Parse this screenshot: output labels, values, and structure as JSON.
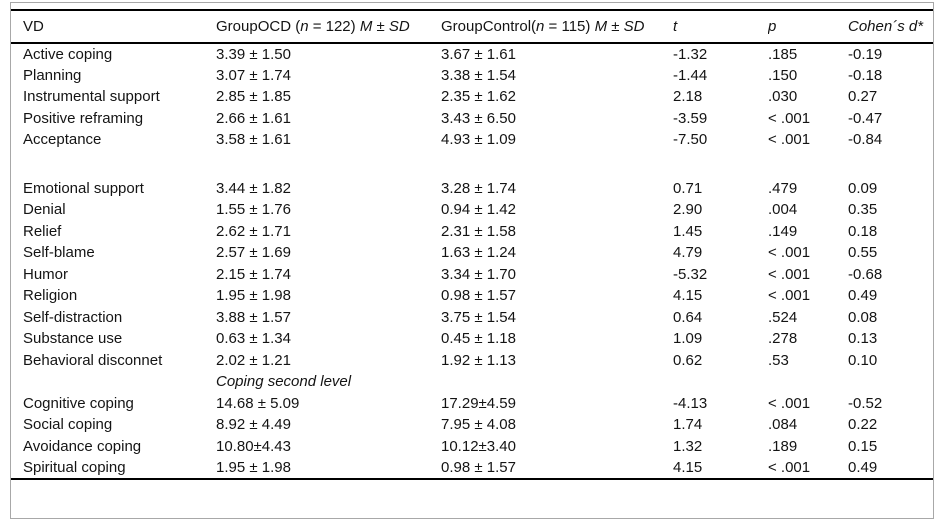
{
  "colors": {
    "background": "#ffffff",
    "rule": "#000000",
    "frame_border": "#a8a8a8",
    "text": "#141414"
  },
  "table": {
    "header": {
      "cells": [
        {
          "name": "vd",
          "parts": [
            {
              "t": "VD"
            }
          ]
        },
        {
          "name": "group-ocd",
          "parts": [
            {
              "t": "GroupOCD ("
            },
            {
              "t": "n",
              "i": true
            },
            {
              "t": " = 122) "
            },
            {
              "t": "M ± SD",
              "i": true
            }
          ]
        },
        {
          "name": "group-control",
          "parts": [
            {
              "t": "GroupControl("
            },
            {
              "t": "n",
              "i": true
            },
            {
              "t": " = 115) "
            },
            {
              "t": "M ± SD",
              "i": true
            }
          ]
        },
        {
          "name": "t-statistic",
          "parts": [
            {
              "t": "t",
              "i": true
            }
          ]
        },
        {
          "name": "p-value",
          "parts": [
            {
              "t": "p",
              "i": true
            }
          ]
        },
        {
          "name": "cohens-d",
          "parts": [
            {
              "t": "Cohen´s d*",
              "i": true
            }
          ]
        }
      ]
    },
    "rows": [
      {
        "type": "data",
        "cells": [
          "Active coping",
          "3.39 ± 1.50",
          "3.67 ± 1.61",
          "-1.32",
          ".185",
          "-0.19"
        ]
      },
      {
        "type": "data",
        "cells": [
          "Planning",
          "3.07 ± 1.74",
          "3.38 ± 1.54",
          "-1.44",
          ".150",
          "-0.18"
        ]
      },
      {
        "type": "data",
        "cells": [
          "Instrumental support",
          "2.85 ± 1.85",
          "2.35 ± 1.62",
          "2.18",
          ".030",
          "0.27"
        ]
      },
      {
        "type": "data",
        "cells": [
          "Positive reframing",
          "2.66 ± 1.61",
          "3.43 ± 6.50",
          "-3.59",
          "< .001",
          "-0.47"
        ]
      },
      {
        "type": "data",
        "cells": [
          "Acceptance",
          "3.58 ± 1.61",
          "4.93 ± 1.09",
          "-7.50",
          "< .001",
          "-0.84"
        ]
      },
      {
        "type": "spacer"
      },
      {
        "type": "data",
        "cells": [
          "Emotional support",
          "3.44 ± 1.82",
          "3.28 ± 1.74",
          "0.71",
          ".479",
          "0.09"
        ]
      },
      {
        "type": "data",
        "cells": [
          "Denial",
          "1.55 ± 1.76",
          "0.94 ± 1.42",
          "2.90",
          ".004",
          "0.35"
        ]
      },
      {
        "type": "data",
        "cells": [
          "Relief",
          "2.62 ± 1.71",
          "2.31 ± 1.58",
          "1.45",
          ".149",
          "0.18"
        ]
      },
      {
        "type": "data",
        "cells": [
          "Self-blame",
          "2.57 ± 1.69",
          "1.63 ± 1.24",
          "4.79",
          "< .001",
          "0.55"
        ]
      },
      {
        "type": "data",
        "cells": [
          "Humor",
          "2.15 ± 1.74",
          "3.34 ± 1.70",
          "-5.32",
          "< .001",
          "-0.68"
        ]
      },
      {
        "type": "data",
        "cells": [
          "Religion",
          "1.95 ± 1.98",
          "0.98 ± 1.57",
          "4.15",
          "< .001",
          "0.49"
        ]
      },
      {
        "type": "data",
        "cells": [
          "Self-distraction",
          "3.88 ± 1.57",
          "3.75 ± 1.54",
          "0.64",
          ".524",
          "0.08"
        ]
      },
      {
        "type": "data",
        "cells": [
          "Substance use",
          "0.63 ± 1.34",
          "0.45 ± 1.18",
          "1.09",
          ".278",
          "0.13"
        ]
      },
      {
        "type": "data",
        "cells": [
          "Behavioral disconnet",
          "2.02 ± 1.21",
          "1.92 ± 1.13",
          "0.62",
          ".53",
          "0.10"
        ]
      },
      {
        "type": "subheader",
        "label": "Coping second level"
      },
      {
        "type": "data",
        "cells": [
          "Cognitive coping",
          "14.68 ± 5.09",
          "17.29±4.59",
          "-4.13",
          "< .001",
          "-0.52"
        ]
      },
      {
        "type": "data",
        "cells": [
          "Social coping",
          "8.92 ± 4.49",
          "7.95 ± 4.08",
          "1.74",
          ".084",
          "0.22"
        ]
      },
      {
        "type": "data",
        "cells": [
          "Avoidance coping",
          "10.80±4.43",
          "10.12±3.40",
          "1.32",
          ".189",
          "0.15"
        ]
      },
      {
        "type": "data",
        "cells": [
          "Spiritual coping",
          "1.95 ± 1.98",
          "0.98 ± 1.57",
          "4.15",
          "< .001",
          "0.49"
        ]
      }
    ]
  }
}
